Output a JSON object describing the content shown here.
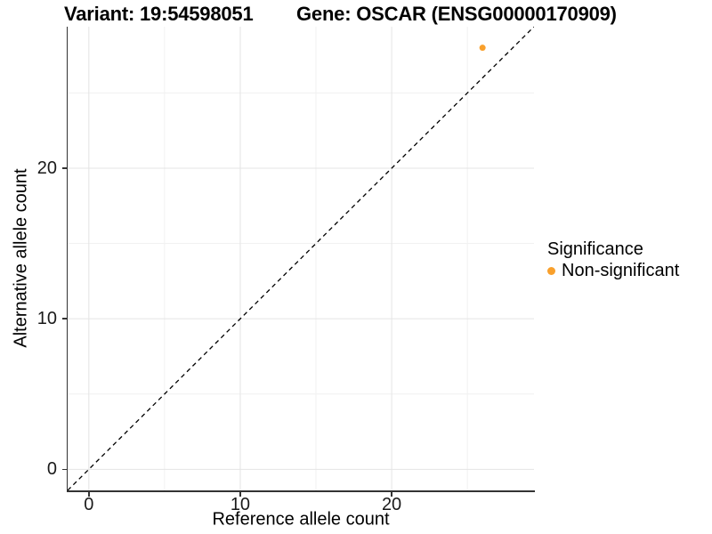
{
  "titles": {
    "left": "Variant: 19:54598051",
    "right": "Gene: OSCAR (ENSG00000170909)"
  },
  "chart_data": {
    "type": "scatter",
    "xlabel": "Reference allele count",
    "ylabel": "Alternative allele count",
    "xlim": [
      -1.4,
      29.4
    ],
    "ylim": [
      -1.4,
      29.4
    ],
    "xticks": [
      0,
      10,
      20
    ],
    "yticks": [
      0,
      10,
      20
    ],
    "xminor": [
      5,
      15,
      25
    ],
    "yminor": [
      5,
      15,
      25
    ],
    "grid": "major and minor gridlines, white background",
    "points": [
      {
        "x": 26,
        "y": 28,
        "series": "Non-significant",
        "color": "#F9A02C"
      }
    ],
    "identity_line": {
      "slope": 1,
      "intercept": 0,
      "style": "dashed",
      "color": "#000000"
    },
    "legend": {
      "title": "Significance",
      "position": "right",
      "entries": [
        {
          "label": "Non-significant",
          "color": "#F9A02C"
        }
      ]
    }
  },
  "colors": {
    "point": "#F9A02C",
    "grid_major": "#e4e4e4",
    "grid_minor": "#f1f1f1",
    "axis_line": "#333333",
    "tick_text": "#1a1a1a",
    "background": "#ffffff"
  }
}
